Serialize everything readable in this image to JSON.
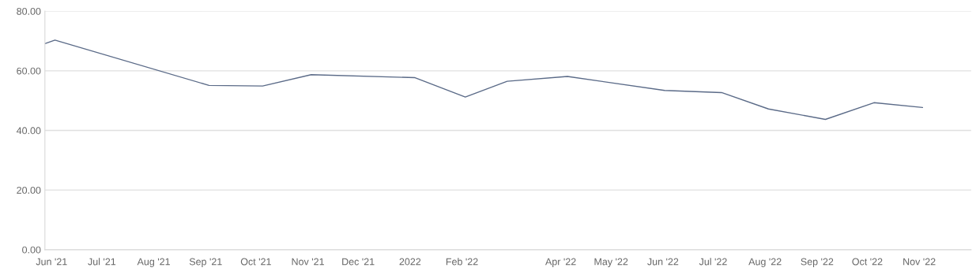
{
  "chart_data": {
    "type": "line",
    "x": [
      "2021-05-28",
      "2021-06-03",
      "2021-09-03",
      "2021-10-05",
      "2021-11-03",
      "2022-01-04",
      "2022-02-03",
      "2022-02-28",
      "2022-04-05",
      "2022-06-02",
      "2022-07-06",
      "2022-08-03",
      "2022-09-06",
      "2022-10-05",
      "2022-11-03"
    ],
    "series": [
      {
        "color": "#5b6b88",
        "values": [
          69.1,
          70.3,
          55.1,
          54.9,
          58.7,
          57.7,
          51.2,
          56.5,
          58.1,
          53.4,
          52.7,
          47.2,
          43.7,
          49.3,
          47.7
        ]
      }
    ],
    "xlim": [
      "2021-05-28",
      "2022-12-02"
    ],
    "xticks": [
      {
        "value": "2021-06-01",
        "label": "Jun '21"
      },
      {
        "value": "2021-07-01",
        "label": "Jul '21"
      },
      {
        "value": "2021-08-01",
        "label": "Aug '21"
      },
      {
        "value": "2021-09-01",
        "label": "Sep '21"
      },
      {
        "value": "2021-10-01",
        "label": "Oct '21"
      },
      {
        "value": "2021-11-01",
        "label": "Nov '21"
      },
      {
        "value": "2021-12-01",
        "label": "Dec '21"
      },
      {
        "value": "2022-01-01",
        "label": "2022"
      },
      {
        "value": "2022-02-01",
        "label": "Feb '22"
      },
      {
        "value": "2022-04-01",
        "label": "Apr '22"
      },
      {
        "value": "2022-05-01",
        "label": "May '22"
      },
      {
        "value": "2022-06-01",
        "label": "Jun '22"
      },
      {
        "value": "2022-07-01",
        "label": "Jul '22"
      },
      {
        "value": "2022-08-01",
        "label": "Aug '22"
      },
      {
        "value": "2022-09-01",
        "label": "Sep '22"
      },
      {
        "value": "2022-10-01",
        "label": "Oct '22"
      },
      {
        "value": "2022-11-01",
        "label": "Nov '22"
      }
    ],
    "ylim": [
      0,
      80
    ],
    "yticks": [
      {
        "value": 0,
        "label": "0.00"
      },
      {
        "value": 20,
        "label": "20.00"
      },
      {
        "value": 40,
        "label": "40.00"
      },
      {
        "value": 60,
        "label": "60.00"
      },
      {
        "value": 80,
        "label": "80.00"
      }
    ],
    "grid": "y",
    "marker": "none",
    "line_style": "solid",
    "legend": false
  }
}
